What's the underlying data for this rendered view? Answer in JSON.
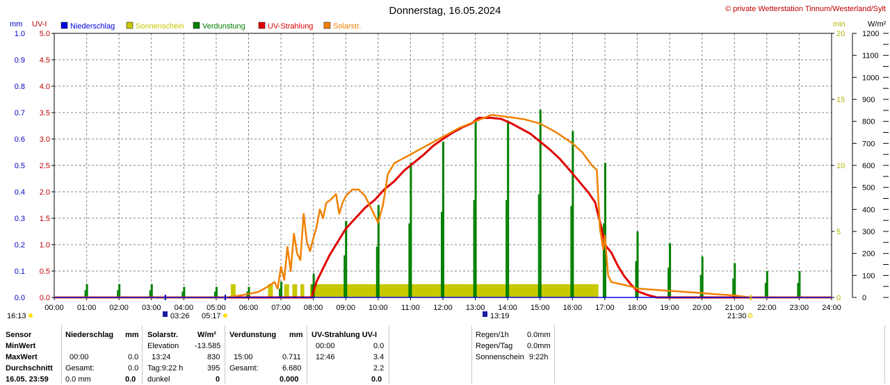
{
  "chart_data": {
    "type": "line",
    "title": "Donnerstag, 16.05.2024",
    "copyright": "© private Wetterstation Tinnum/Westerland/Sylt",
    "units": {
      "mm": "mm",
      "uv": "UV-I",
      "min": "min",
      "wm2": "W/m²"
    },
    "legend": [
      {
        "label": "Niederschlag",
        "color": "#0000e0"
      },
      {
        "label": "Sonnenschein",
        "color": "#c8c800"
      },
      {
        "label": "Verdunstung",
        "color": "#008000"
      },
      {
        "label": "UV-Strahlung",
        "color": "#e00000"
      },
      {
        "label": "Solarstr.",
        "color": "#f08000"
      }
    ],
    "colors": {
      "mm": "#0000c0",
      "uv": "#c00000",
      "min": "#b4b400",
      "wm2": "#000000",
      "solar": "#f08000",
      "uv_line": "#e00000",
      "sun": "#c8c800",
      "evap": "#008000",
      "grid": "#808080"
    },
    "x_ticks": [
      "00:00",
      "01:00",
      "02:00",
      "03:00",
      "04:00",
      "05:00",
      "06:00",
      "07:00",
      "08:00",
      "09:00",
      "10:00",
      "11:00",
      "12:00",
      "13:00",
      "14:00",
      "15:00",
      "16:00",
      "17:00",
      "18:00",
      "19:00",
      "20:00",
      "21:00",
      "22:00",
      "23:00",
      "24:00"
    ],
    "x_range_hours": [
      0,
      24
    ],
    "y_mm_ticks": [
      "0.0",
      "0.1",
      "0.2",
      "0.3",
      "0.4",
      "0.5",
      "0.6",
      "0.7",
      "0.8",
      "0.9",
      "1.0"
    ],
    "y_uv_ticks": [
      "0.0",
      "0.5",
      "1.0",
      "1.5",
      "2.0",
      "2.5",
      "3.0",
      "3.5",
      "4.0",
      "4.5",
      "5.0"
    ],
    "y_min_ticks": [
      "0",
      "5",
      "10",
      "15",
      "20"
    ],
    "y_wm2_ticks": [
      "0",
      "100",
      "200",
      "300",
      "400",
      "500",
      "600",
      "700",
      "800",
      "900",
      "1000",
      "1100",
      "1200"
    ],
    "ylim_wm2": [
      0,
      1200
    ],
    "ylim_uv": [
      0,
      5
    ],
    "ylim_mm": [
      0,
      1
    ],
    "sunshine": [
      {
        "from": 5.45,
        "to": 5.6,
        "min": 1
      },
      {
        "from": 6.6,
        "to": 6.75,
        "min": 1
      },
      {
        "from": 7.1,
        "to": 7.25,
        "min": 1
      },
      {
        "from": 7.35,
        "to": 7.5,
        "min": 1
      },
      {
        "from": 7.6,
        "to": 7.72,
        "min": 1
      },
      {
        "from": 7.9,
        "to": 16.8,
        "min": 1
      }
    ],
    "evaporation": [
      {
        "t": 1.0,
        "v": 0.05
      },
      {
        "t": 2.0,
        "v": 0.05
      },
      {
        "t": 3.0,
        "v": 0.05
      },
      {
        "t": 4.0,
        "v": 0.04
      },
      {
        "t": 5.0,
        "v": 0.04
      },
      {
        "t": 6.0,
        "v": 0.04
      },
      {
        "t": 7.0,
        "v": 0.06
      },
      {
        "t": 8.0,
        "v": 0.09
      },
      {
        "t": 9.0,
        "v": 0.29
      },
      {
        "t": 10.0,
        "v": 0.35
      },
      {
        "t": 11.0,
        "v": 0.51
      },
      {
        "t": 12.0,
        "v": 0.59
      },
      {
        "t": 13.0,
        "v": 0.67
      },
      {
        "t": 14.0,
        "v": 0.67
      },
      {
        "t": 15.0,
        "v": 0.711
      },
      {
        "t": 16.0,
        "v": 0.63
      },
      {
        "t": 17.0,
        "v": 0.51
      },
      {
        "t": 18.0,
        "v": 0.25
      },
      {
        "t": 19.0,
        "v": 0.205
      },
      {
        "t": 20.0,
        "v": 0.155
      },
      {
        "t": 21.0,
        "v": 0.13
      },
      {
        "t": 22.0,
        "v": 0.1
      },
      {
        "t": 23.0,
        "v": 0.1
      }
    ],
    "uv_strahlung": [
      [
        0,
        0
      ],
      [
        7.95,
        0
      ],
      [
        8.1,
        0.3
      ],
      [
        8.3,
        0.55
      ],
      [
        8.5,
        0.8
      ],
      [
        8.7,
        1.0
      ],
      [
        9.0,
        1.3
      ],
      [
        9.3,
        1.5
      ],
      [
        9.6,
        1.7
      ],
      [
        9.9,
        1.85
      ],
      [
        10.2,
        2.05
      ],
      [
        10.5,
        2.2
      ],
      [
        10.8,
        2.4
      ],
      [
        11.1,
        2.55
      ],
      [
        11.4,
        2.7
      ],
      [
        11.7,
        2.87
      ],
      [
        12.0,
        3.0
      ],
      [
        12.3,
        3.12
      ],
      [
        12.6,
        3.22
      ],
      [
        12.9,
        3.3
      ],
      [
        13.1,
        3.4
      ],
      [
        13.5,
        3.4
      ],
      [
        13.8,
        3.38
      ],
      [
        14.1,
        3.3
      ],
      [
        14.4,
        3.2
      ],
      [
        14.7,
        3.1
      ],
      [
        15.0,
        2.95
      ],
      [
        15.3,
        2.8
      ],
      [
        15.6,
        2.63
      ],
      [
        15.9,
        2.42
      ],
      [
        16.2,
        2.2
      ],
      [
        16.5,
        1.98
      ],
      [
        16.7,
        1.8
      ],
      [
        16.8,
        1.55
      ],
      [
        16.9,
        1.3
      ],
      [
        17.0,
        1.0
      ],
      [
        17.2,
        0.85
      ],
      [
        17.4,
        0.6
      ],
      [
        17.6,
        0.4
      ],
      [
        17.8,
        0.25
      ],
      [
        18.0,
        0.12
      ],
      [
        18.3,
        0.05
      ],
      [
        18.6,
        0.0
      ],
      [
        24,
        0
      ]
    ],
    "solarstrahlung": [
      [
        0,
        0
      ],
      [
        5.3,
        0
      ],
      [
        5.8,
        10
      ],
      [
        6.3,
        25
      ],
      [
        6.6,
        50
      ],
      [
        6.8,
        70
      ],
      [
        6.9,
        40
      ],
      [
        7.0,
        140
      ],
      [
        7.1,
        80
      ],
      [
        7.2,
        230
      ],
      [
        7.3,
        120
      ],
      [
        7.4,
        290
      ],
      [
        7.5,
        200
      ],
      [
        7.6,
        170
      ],
      [
        7.7,
        380
      ],
      [
        7.8,
        250
      ],
      [
        7.9,
        210
      ],
      [
        8.0,
        270
      ],
      [
        8.1,
        320
      ],
      [
        8.2,
        400
      ],
      [
        8.3,
        360
      ],
      [
        8.4,
        430
      ],
      [
        8.5,
        440
      ],
      [
        8.7,
        470
      ],
      [
        8.8,
        380
      ],
      [
        8.9,
        430
      ],
      [
        9.0,
        460
      ],
      [
        9.2,
        490
      ],
      [
        9.4,
        490
      ],
      [
        9.6,
        460
      ],
      [
        9.8,
        400
      ],
      [
        10.0,
        340
      ],
      [
        10.15,
        420
      ],
      [
        10.3,
        560
      ],
      [
        10.5,
        610
      ],
      [
        11.0,
        650
      ],
      [
        11.5,
        690
      ],
      [
        12.0,
        730
      ],
      [
        12.5,
        770
      ],
      [
        13.0,
        800
      ],
      [
        13.5,
        830
      ],
      [
        14.0,
        820
      ],
      [
        14.5,
        810
      ],
      [
        15.0,
        790
      ],
      [
        15.5,
        750
      ],
      [
        16.0,
        700
      ],
      [
        16.3,
        660
      ],
      [
        16.6,
        600
      ],
      [
        16.75,
        580
      ],
      [
        16.85,
        310
      ],
      [
        16.95,
        220
      ],
      [
        17.0,
        280
      ],
      [
        17.1,
        100
      ],
      [
        17.2,
        70
      ],
      [
        17.5,
        60
      ],
      [
        17.8,
        50
      ],
      [
        18.0,
        40
      ],
      [
        18.5,
        35
      ],
      [
        19.0,
        30
      ],
      [
        19.5,
        25
      ],
      [
        20.0,
        20
      ],
      [
        20.5,
        14
      ],
      [
        21.0,
        9
      ],
      [
        21.5,
        0
      ],
      [
        24,
        0
      ]
    ]
  },
  "axis_markers": {
    "left_time": "16:13",
    "sunrise": "03:26",
    "dawn": "05:17",
    "noon": "13:19",
    "sunset": "21:30"
  },
  "stats": {
    "row_labels": [
      "Sensor",
      "MinWert",
      "MaxWert",
      "Durchschnitt",
      "16.05. 23:59"
    ],
    "niederschlag": {
      "header": "Niederschlag",
      "unit": "mm",
      "max_time": "00:00",
      "max_val": "0.0",
      "avg_label": "Gesamt:",
      "avg_val": "0.0",
      "last_val": "0.0",
      "last_unit": "mm",
      "last_total": "0.0"
    },
    "solar": {
      "header": "Solarstr.",
      "unit": "W/m²",
      "min_label": "Elevation",
      "min_val": "-13.585",
      "max_time": "13:24",
      "max_val": "830",
      "avg_label": "Tag:9:22 h",
      "avg_val": "395",
      "last_label": "dunkel",
      "last_val": "0"
    },
    "verdunstung": {
      "header": "Verdunstung",
      "unit": "mm",
      "max_time": "15:00",
      "max_val": "0.711",
      "avg_label": "Gesamt:",
      "avg_val": "6.680",
      "last_val": "0.000"
    },
    "uv": {
      "header": "UV-Strahlung UV-I",
      "min_time": "00:00",
      "min_val": "0.0",
      "max_time": "12:46",
      "max_val": "3.4",
      "avg_val": "2.2",
      "last_val": "0.0"
    },
    "extra": {
      "regen1h_label": "Regen/1h",
      "regen1h_val": "0.0mm",
      "regentag_label": "Regen/Tag",
      "regentag_val": "0.0mm",
      "sonne_label": "Sonnenschein",
      "sonne_val": "9:22h"
    }
  }
}
